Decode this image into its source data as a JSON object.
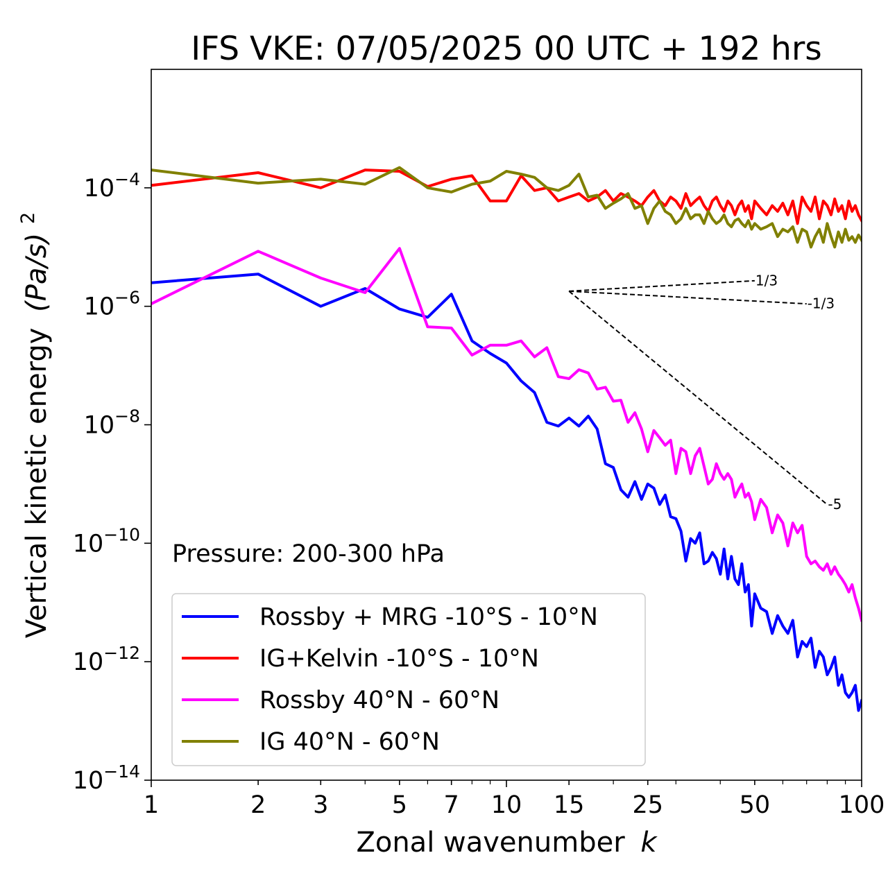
{
  "chart_data": {
    "type": "line",
    "title": "IFS VKE: 07/05/2025 00 UTC + 192 hrs",
    "xlabel": "Zonal wavenumber",
    "xlabel_var": "k",
    "ylabel": "Vertical kinetic energy",
    "ylabel_unit": "(Pa/s)",
    "ylabel_exp": "2",
    "xscale": "log",
    "yscale": "log",
    "xlim": [
      1,
      100
    ],
    "ylim": [
      1e-14,
      0.01
    ],
    "x_ticks": [
      1,
      2,
      3,
      5,
      7,
      10,
      15,
      25,
      50,
      100
    ],
    "x_tick_labels": [
      "1",
      "2",
      "3",
      "5",
      "7",
      "10",
      "15",
      "25",
      "50",
      "100"
    ],
    "y_ticks": [
      -14,
      -12,
      -10,
      -8,
      -6,
      -4
    ],
    "y_tick_base": "10",
    "y_tick_exps": [
      "−14",
      "−12",
      "−10",
      "−8",
      "−6",
      "−4"
    ],
    "grid": false,
    "legend_position": "lower-left",
    "annotation": "Pressure: 200-300 hPa",
    "series": [
      {
        "name": "Rossby + MRG -10°S - 10°N",
        "color": "#0000ff",
        "x": [
          1,
          2,
          3,
          4,
          5,
          6,
          7,
          8,
          9,
          10,
          11,
          12,
          13,
          14,
          15,
          16,
          17,
          18,
          19,
          20,
          21,
          22,
          23,
          24,
          25,
          26,
          27,
          28,
          29,
          30,
          31,
          32,
          33,
          34,
          35,
          36,
          37,
          38,
          39,
          40,
          41,
          42,
          43,
          44,
          45,
          46,
          47,
          48,
          49,
          50,
          52,
          54,
          56,
          58,
          60,
          62,
          64,
          66,
          68,
          70,
          72,
          74,
          76,
          78,
          80,
          82,
          84,
          86,
          88,
          90,
          92,
          94,
          96,
          98,
          100
        ],
        "y": [
          2.5e-06,
          3.5e-06,
          1e-06,
          2e-06,
          9e-07,
          6.5e-07,
          1.6e-06,
          2.6e-07,
          1.6e-07,
          1.1e-07,
          5.5e-08,
          3.5e-08,
          1.1e-08,
          9.5e-09,
          1.3e-08,
          9.5e-09,
          1.4e-08,
          8.5e-09,
          2.2e-09,
          1.9e-09,
          8e-10,
          6e-10,
          1.1e-09,
          5.5e-10,
          1e-09,
          8.5e-10,
          4.5e-10,
          6.5e-10,
          2.8e-10,
          2.6e-10,
          1.6e-10,
          5e-11,
          1.2e-10,
          1e-10,
          1.5e-10,
          4.5e-11,
          5e-11,
          7e-11,
          5.5e-11,
          3e-11,
          8e-11,
          2.5e-11,
          6e-11,
          2.5e-11,
          2e-11,
          4.5e-11,
          1.5e-11,
          2e-11,
          4e-12,
          1.4e-11,
          8e-12,
          7e-12,
          3e-12,
          6e-12,
          4e-12,
          3e-12,
          5e-12,
          1.2e-12,
          2.2e-12,
          1.8e-12,
          2.5e-12,
          8e-13,
          1.5e-12,
          1.2e-12,
          6e-13,
          8e-13,
          1.2e-12,
          4e-13,
          6e-13,
          3e-13,
          2.5e-13,
          3e-13,
          4e-13,
          1.5e-13,
          2.2e-13
        ]
      },
      {
        "name": "IG+Kelvin -10°S - 10°N",
        "color": "#ff0000",
        "x": [
          1,
          2,
          3,
          4,
          5,
          6,
          7,
          8,
          9,
          10,
          11,
          12,
          13,
          14,
          15,
          16,
          17,
          18,
          19,
          20,
          21,
          22,
          23,
          24,
          25,
          26,
          27,
          28,
          29,
          30,
          31,
          32,
          33,
          34,
          35,
          36,
          37,
          38,
          39,
          40,
          41,
          42,
          43,
          44,
          45,
          46,
          47,
          48,
          49,
          50,
          52,
          54,
          56,
          58,
          60,
          62,
          64,
          66,
          68,
          70,
          72,
          74,
          76,
          78,
          80,
          82,
          84,
          86,
          88,
          90,
          92,
          94,
          96,
          98,
          100
        ],
        "y": [
          0.00011,
          0.00018,
          0.0001,
          0.0002,
          0.00019,
          0.000105,
          0.00014,
          0.00016,
          6e-05,
          6e-05,
          0.00016,
          9e-05,
          0.0001,
          6e-05,
          7e-05,
          8e-05,
          6e-05,
          7e-05,
          9e-05,
          6e-05,
          8e-05,
          7e-05,
          6e-05,
          5e-05,
          7e-05,
          9e-05,
          6e-05,
          5e-05,
          7e-05,
          6e-05,
          4.5e-05,
          8e-05,
          5e-05,
          6e-05,
          7e-05,
          5e-05,
          4e-05,
          6e-05,
          7e-05,
          5e-05,
          4e-05,
          6e-05,
          5e-05,
          3.5e-05,
          5e-05,
          6e-05,
          4e-05,
          5e-05,
          3e-05,
          6e-05,
          4.5e-05,
          3.5e-05,
          5e-05,
          4e-05,
          5.5e-05,
          3.5e-05,
          6e-05,
          2.5e-05,
          7e-05,
          5e-05,
          4e-05,
          7e-05,
          3e-05,
          6e-05,
          5e-05,
          3.5e-05,
          6.5e-05,
          4e-05,
          5e-05,
          3e-05,
          6e-05,
          4e-05,
          5e-05,
          3.5e-05,
          2.8e-05
        ]
      },
      {
        "name": "Rossby 40°N - 60°N",
        "color": "#ff00ff",
        "x": [
          1,
          2,
          3,
          4,
          5,
          6,
          7,
          8,
          9,
          10,
          11,
          12,
          13,
          14,
          15,
          16,
          17,
          18,
          19,
          20,
          21,
          22,
          23,
          24,
          25,
          26,
          27,
          28,
          29,
          30,
          31,
          32,
          33,
          34,
          35,
          36,
          37,
          38,
          39,
          40,
          41,
          42,
          43,
          44,
          45,
          46,
          47,
          48,
          49,
          50,
          52,
          54,
          56,
          58,
          60,
          62,
          64,
          66,
          68,
          70,
          72,
          74,
          76,
          78,
          80,
          82,
          84,
          86,
          88,
          90,
          92,
          94,
          96,
          98,
          100
        ],
        "y": [
          1.1e-06,
          8.5e-06,
          3e-06,
          1.7e-06,
          9.5e-06,
          4.5e-07,
          4.3e-07,
          1.5e-07,
          2.2e-07,
          2.2e-07,
          2.6e-07,
          1.4e-07,
          2e-07,
          6.5e-08,
          6e-08,
          8.5e-08,
          7.5e-08,
          4e-08,
          4.3e-08,
          2.5e-08,
          2.6e-08,
          1.1e-08,
          1.6e-08,
          8.5e-09,
          3.5e-09,
          8e-09,
          6e-09,
          4.5e-09,
          5.5e-09,
          1.5e-09,
          4e-09,
          3.5e-09,
          1.5e-09,
          3e-09,
          4e-09,
          2e-09,
          1e-09,
          1.2e-09,
          2.2e-09,
          1.5e-09,
          1.2e-09,
          1.5e-09,
          1.2e-09,
          6e-10,
          8e-10,
          1e-09,
          6e-10,
          7e-10,
          5e-10,
          2.5e-10,
          5.5e-10,
          4e-10,
          1.5e-10,
          3e-10,
          2.2e-10,
          9e-11,
          2.2e-10,
          1.5e-10,
          2e-10,
          6e-11,
          4.5e-11,
          5e-11,
          4e-11,
          3.5e-11,
          4.5e-11,
          3e-11,
          4e-11,
          3e-11,
          2.5e-11,
          2e-11,
          1.5e-11,
          2e-11,
          1.2e-11,
          8e-12,
          5e-12
        ]
      },
      {
        "name": "IG 40°N - 60°N",
        "color": "#808000",
        "x": [
          1,
          2,
          3,
          4,
          5,
          6,
          7,
          8,
          9,
          10,
          11,
          12,
          13,
          14,
          15,
          16,
          17,
          18,
          19,
          20,
          21,
          22,
          23,
          24,
          25,
          26,
          27,
          28,
          29,
          30,
          31,
          32,
          33,
          34,
          35,
          36,
          37,
          38,
          39,
          40,
          41,
          42,
          43,
          44,
          45,
          46,
          47,
          48,
          49,
          50,
          52,
          54,
          56,
          58,
          60,
          62,
          64,
          66,
          68,
          70,
          72,
          74,
          76,
          78,
          80,
          82,
          84,
          86,
          88,
          90,
          92,
          94,
          96,
          98,
          100
        ],
        "y": [
          0.0002,
          0.00012,
          0.00014,
          0.000115,
          0.00022,
          0.0001,
          8.5e-05,
          0.000115,
          0.00013,
          0.00019,
          0.00017,
          0.00015,
          0.0001,
          9e-05,
          0.00011,
          0.00017,
          7e-05,
          7.5e-05,
          4.5e-05,
          5.5e-05,
          6.5e-05,
          8e-05,
          4.5e-05,
          5e-05,
          2.5e-05,
          4.5e-05,
          6e-05,
          4e-05,
          3.5e-05,
          2.5e-05,
          3e-05,
          4.5e-05,
          3e-05,
          3.5e-05,
          3.5e-05,
          2.5e-05,
          4e-05,
          3e-05,
          2.5e-05,
          2.8e-05,
          3.5e-05,
          2.5e-05,
          2.2e-05,
          2.8e-05,
          3e-05,
          2.5e-05,
          2.2e-05,
          2.8e-05,
          2e-05,
          2.5e-05,
          2e-05,
          2.2e-05,
          2.5e-05,
          1.5e-05,
          2e-05,
          1.8e-05,
          2.2e-05,
          1.2e-05,
          2e-05,
          1.8e-05,
          1e-05,
          1.5e-05,
          2e-05,
          1.2e-05,
          2.5e-05,
          1.5e-05,
          1e-05,
          1.8e-05,
          1.2e-05,
          2e-05,
          1.3e-05,
          1.5e-05,
          1.2e-05,
          1.6e-05,
          1.3e-05
        ]
      }
    ],
    "reference_lines": [
      {
        "label": "1/3",
        "x": [
          15,
          50
        ],
        "y": [
          1.8e-06,
          2.7e-06
        ]
      },
      {
        "label": "-1/3",
        "x": [
          15,
          70
        ],
        "y": [
          1.8e-06,
          1.1e-06
        ]
      },
      {
        "label": "-5",
        "x": [
          15,
          80
        ],
        "y": [
          1.8e-06,
          4.5e-10
        ]
      }
    ]
  }
}
